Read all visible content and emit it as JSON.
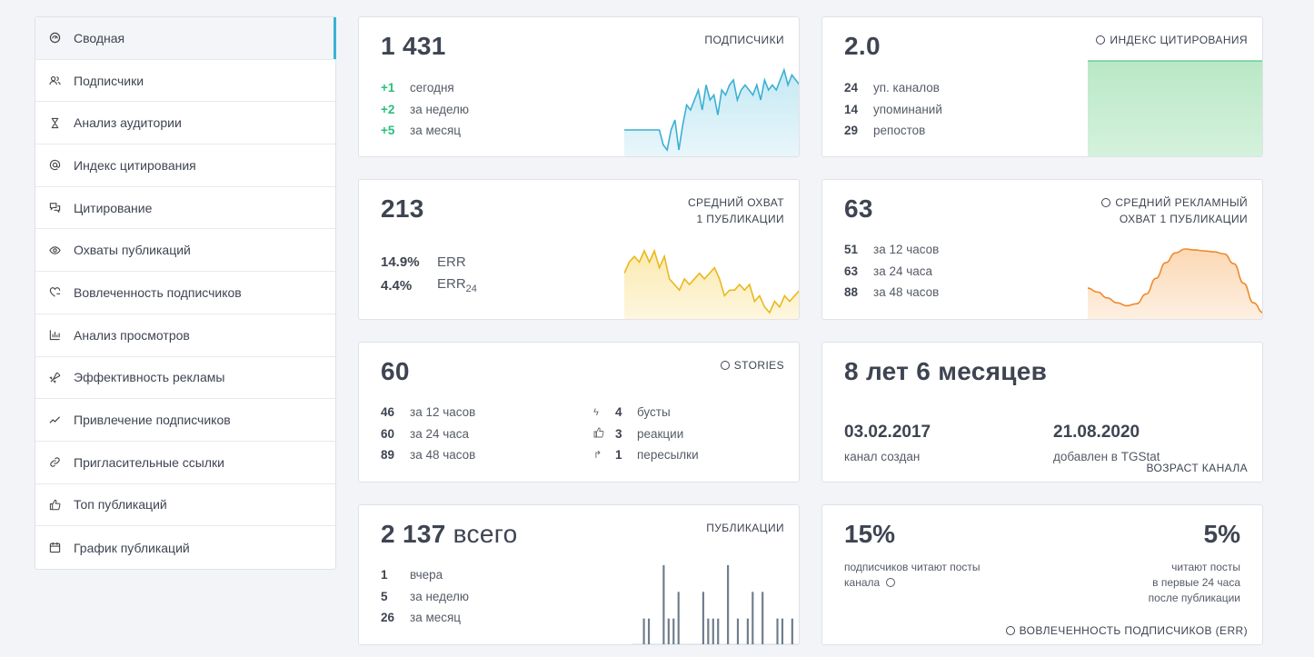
{
  "sidebar": {
    "items": [
      {
        "label": "Сводная",
        "icon": "dashboard-icon",
        "active": true
      },
      {
        "label": "Подписчики",
        "icon": "users-icon"
      },
      {
        "label": "Анализ аудитории",
        "icon": "hourglass-icon"
      },
      {
        "label": "Индекс цитирования",
        "icon": "at-icon"
      },
      {
        "label": "Цитирование",
        "icon": "chat-icon"
      },
      {
        "label": "Охваты публикаций",
        "icon": "eye-icon"
      },
      {
        "label": "Вовлеченность подписчиков",
        "icon": "heart-icon"
      },
      {
        "label": "Анализ просмотров",
        "icon": "bar-chart-icon"
      },
      {
        "label": "Эффективность рекламы",
        "icon": "rocket-icon"
      },
      {
        "label": "Привлечение подписчиков",
        "icon": "trend-icon"
      },
      {
        "label": "Пригласительные ссылки",
        "icon": "link-icon"
      },
      {
        "label": "Топ публикаций",
        "icon": "thumbs-up-icon"
      },
      {
        "label": "График публикаций",
        "icon": "calendar-icon"
      }
    ]
  },
  "cards": {
    "subscribers": {
      "value": "1 431",
      "caption": "ПОДПИСЧИКИ",
      "rows": [
        {
          "n": "+1",
          "t": "сегодня"
        },
        {
          "n": "+2",
          "t": "за неделю"
        },
        {
          "n": "+5",
          "t": "за месяц"
        }
      ]
    },
    "citation": {
      "value": "2.0",
      "caption": "ИНДЕКС ЦИТИРОВАНИЯ",
      "rows": [
        {
          "n": "24",
          "t": "уп. каналов"
        },
        {
          "n": "14",
          "t": "упоминаний"
        },
        {
          "n": "29",
          "t": "репостов"
        }
      ]
    },
    "reach": {
      "value": "213",
      "caption_1": "СРЕДНИЙ ОХВАТ",
      "caption_2": "1 ПУБЛИКАЦИИ",
      "err": {
        "n": "14.9%",
        "t": "ERR"
      },
      "err24": {
        "n": "4.4%",
        "t": "ERR",
        "sub": "24"
      }
    },
    "ad_reach": {
      "value": "63",
      "caption_1": "СРЕДНИЙ РЕКЛАМНЫЙ",
      "caption_2": "ОХВАТ 1 ПУБЛИКАЦИИ",
      "rows": [
        {
          "n": "51",
          "t": "за 12 часов"
        },
        {
          "n": "63",
          "t": "за 24 часа"
        },
        {
          "n": "88",
          "t": "за 48 часов"
        }
      ]
    },
    "stories": {
      "value": "60",
      "caption": "STORIES",
      "rows": [
        {
          "n": "46",
          "t": "за 12 часов"
        },
        {
          "n": "60",
          "t": "за 24 часа"
        },
        {
          "n": "89",
          "t": "за 48 часов"
        }
      ],
      "right_rows": [
        {
          "icon": "lightning-icon",
          "n": "4",
          "t": "бусты"
        },
        {
          "icon": "thumbs-up-icon",
          "n": "3",
          "t": "реакции"
        },
        {
          "icon": "forward-icon",
          "n": "1",
          "t": "пересылки"
        }
      ]
    },
    "age": {
      "value": "8 лет 6 месяцев",
      "caption": "ВОЗРАСТ КАНАЛА",
      "created_date": "03.02.2017",
      "created_label": "канал создан",
      "added_date": "21.08.2020",
      "added_label": "добавлен в TGStat"
    },
    "posts": {
      "value": "2 137",
      "value_suffix": "всего",
      "caption": "ПУБЛИКАЦИИ",
      "rows": [
        {
          "n": "1",
          "t": "вчера"
        },
        {
          "n": "5",
          "t": "за неделю"
        },
        {
          "n": "26",
          "t": "за месяц"
        }
      ]
    },
    "engagement": {
      "left_pct": "15%",
      "left_desc_1": "подписчиков читают посты",
      "left_desc_2": "канала",
      "right_pct": "5%",
      "right_desc_1": "читают посты",
      "right_desc_2": "в первые 24 часа",
      "right_desc_3": "после публикации",
      "caption": "ВОВЛЕЧЕННОСТЬ ПОДПИСЧИКОВ (ERR)"
    }
  },
  "colors": {
    "accent": "#3bb3d6",
    "green": "#2bbf7a",
    "subs_line": "#3ab0d4",
    "citation_fill": "#9ad9a8",
    "reach_line": "#e9b81d",
    "ad_line": "#f08a2b",
    "posts_bar": "#6f7d8c"
  },
  "chart_data": [
    {
      "type": "area",
      "name": "subscribers",
      "values": [
        0,
        0,
        0,
        0,
        0,
        0,
        0,
        0,
        0,
        0,
        -3,
        -4,
        0,
        2,
        -4,
        1,
        5,
        4,
        6,
        8,
        4,
        9,
        6,
        7,
        3,
        8,
        7,
        9,
        10,
        6,
        8,
        9,
        8,
        7,
        9,
        6,
        10,
        8,
        9,
        8,
        10,
        12,
        9,
        11,
        10,
        9
      ]
    },
    {
      "type": "area",
      "name": "citation",
      "values": [
        1,
        1,
        1,
        1,
        1,
        1,
        1,
        1,
        1,
        1
      ]
    },
    {
      "type": "area",
      "name": "reach",
      "values": [
        5,
        7,
        8,
        7,
        9,
        7,
        9,
        6,
        8,
        4,
        3,
        2,
        4,
        3,
        4,
        5,
        4,
        5,
        6,
        4,
        1,
        2,
        2,
        3,
        2,
        3,
        0,
        1,
        -1,
        -2,
        0,
        -1,
        1,
        0,
        1,
        2
      ]
    },
    {
      "type": "area",
      "name": "ad_reach",
      "values": [
        4,
        3.6,
        3,
        2.5,
        2.2,
        2.4,
        3.4,
        5,
        6.6,
        7.6,
        8,
        7.9,
        7.8,
        7.7,
        7.5,
        6.5,
        4.5,
        2.5,
        1.5
      ]
    },
    {
      "type": "bar",
      "name": "posts",
      "values": [
        0,
        0,
        1,
        1,
        0,
        0,
        3,
        1,
        1,
        2,
        0,
        0,
        0,
        0,
        2,
        1,
        1,
        1,
        0,
        3,
        0,
        1,
        0,
        1,
        2,
        0,
        2,
        0,
        0,
        1,
        1,
        0,
        1,
        0
      ]
    }
  ]
}
